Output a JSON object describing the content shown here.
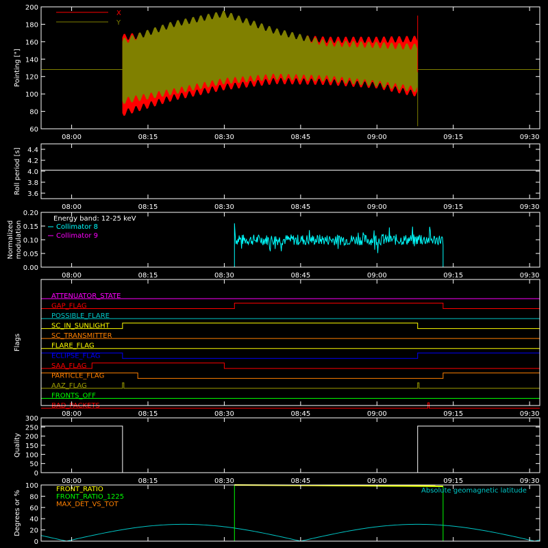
{
  "time_ticks": [
    "08:00",
    "08:15",
    "08:30",
    "08:45",
    "09:00",
    "09:15",
    "09:30"
  ],
  "chart_data": [
    {
      "type": "line",
      "ylabel": "Pointing [\"]",
      "ylim": [
        60,
        200
      ],
      "yticks": [
        60,
        80,
        100,
        120,
        140,
        160,
        180,
        200
      ],
      "xlim": [
        "07:54",
        "09:32"
      ],
      "legend": "top-left",
      "series": [
        {
          "name": "X",
          "color": "#ff0000",
          "baseline": 128,
          "active": [
            "08:10",
            "09:08"
          ],
          "upper_envelope": [
            [
              "08:10",
              165
            ],
            [
              "08:20",
              170
            ],
            [
              "08:30",
              173
            ],
            [
              "08:40",
              166
            ],
            [
              "08:50",
              162
            ],
            [
              "09:00",
              162
            ],
            [
              "09:07",
              163
            ]
          ],
          "lower_envelope": [
            [
              "08:10",
              78
            ],
            [
              "08:20",
              96
            ],
            [
              "08:30",
              108
            ],
            [
              "08:40",
              115
            ],
            [
              "08:50",
              114
            ],
            [
              "09:00",
              110
            ],
            [
              "09:07",
              101
            ]
          ]
        },
        {
          "name": "Y",
          "color": "#808000",
          "baseline": 128,
          "active": [
            "08:10",
            "09:08"
          ],
          "upper_envelope": [
            [
              "08:10",
              160
            ],
            [
              "08:20",
              180
            ],
            [
              "08:30",
              192
            ],
            [
              "08:40",
              172
            ],
            [
              "08:50",
              158
            ],
            [
              "09:00",
              156
            ],
            [
              "09:07",
              154
            ]
          ],
          "lower_envelope": [
            [
              "08:10",
              92
            ],
            [
              "08:20",
              103
            ],
            [
              "08:30",
              115
            ],
            [
              "08:40",
              120
            ],
            [
              "08:50",
              118
            ],
            [
              "09:00",
              112
            ],
            [
              "09:07",
              106
            ]
          ]
        }
      ]
    },
    {
      "type": "line",
      "ylabel": "Roll period [s]",
      "ylim": [
        3.5,
        4.5
      ],
      "yticks": [
        3.6,
        3.8,
        4.0,
        4.2,
        4.4
      ],
      "series": [
        {
          "name": "",
          "color": "#ffffff",
          "values": [
            [
              "07:54",
              4.02
            ],
            [
              "09:32",
              4.02
            ]
          ]
        }
      ]
    },
    {
      "type": "line",
      "ylabel": "Normalized modulation",
      "ylim": [
        0,
        0.2
      ],
      "yticks": [
        0.0,
        0.05,
        0.1,
        0.15,
        0.2
      ],
      "annotation": "Energy band: 12-25 keV",
      "series": [
        {
          "name": "Collimator 8",
          "color": "#00ffff",
          "active": [
            "08:32",
            "09:13"
          ],
          "mean": 0.1,
          "spread": 0.02
        },
        {
          "name": "Collimator 9",
          "color": "#ff00ff",
          "values": [
            [
              "07:54",
              0
            ],
            [
              "09:32",
              0
            ]
          ]
        }
      ]
    },
    {
      "type": "line",
      "ylabel": "Flags",
      "flags": [
        {
          "name": "ATTENUATOR_STATE",
          "color": "#ff00ff",
          "segments": []
        },
        {
          "name": "GAP_FLAG",
          "color": "#ff0000",
          "segments": [
            [
              "08:32",
              "09:13"
            ]
          ]
        },
        {
          "name": "POSSIBLE_FLARE",
          "color": "#00c8c8",
          "segments": []
        },
        {
          "name": "SC_IN_SUNLIGHT",
          "color": "#ffff00",
          "segments": [
            [
              "08:10",
              "09:08"
            ]
          ]
        },
        {
          "name": "SC_TRANSMITTER",
          "color": "#ff8000",
          "segments": []
        },
        {
          "name": "FLARE_FLAG",
          "color": "#ffff00",
          "segments": []
        },
        {
          "name": "ECLIPSE_FLAG",
          "color": "#0000ff",
          "segments": [
            [
              "07:54",
              "08:10"
            ],
            [
              "09:08",
              "09:32"
            ]
          ]
        },
        {
          "name": "SAA_FLAG",
          "color": "#ff0000",
          "segments": [
            [
              "08:04",
              "08:30"
            ]
          ]
        },
        {
          "name": "PARTICLE_FLAG",
          "color": "#ff8000",
          "segments": [
            [
              "07:54",
              "08:13"
            ],
            [
              "09:13",
              "09:32"
            ]
          ]
        },
        {
          "name": "AAZ_FLAG",
          "color": "#a0a000",
          "segments": [
            [
              "08:10",
              "08:10"
            ],
            [
              "09:08",
              "09:08"
            ]
          ]
        },
        {
          "name": "FRONTS_OFF",
          "color": "#00ff00",
          "segments": []
        },
        {
          "name": "BAD_PACKETS",
          "color": "#ff0000",
          "segments": [
            [
              "09:10",
              "09:10"
            ]
          ]
        }
      ]
    },
    {
      "type": "line",
      "ylabel": "Quality",
      "ylim": [
        0,
        300
      ],
      "yticks": [
        0,
        50,
        100,
        150,
        200,
        250,
        300
      ],
      "series": [
        {
          "name": "",
          "color": "#ffffff",
          "values": [
            [
              "07:54",
              255
            ],
            [
              "08:10",
              255
            ],
            [
              "08:10",
              0
            ],
            [
              "09:08",
              0
            ],
            [
              "09:08",
              255
            ],
            [
              "09:32",
              255
            ]
          ]
        }
      ]
    },
    {
      "type": "line",
      "ylabel": "Degrees or %",
      "ylim": [
        0,
        100
      ],
      "yticks": [
        0,
        20,
        40,
        60,
        80,
        100
      ],
      "annotation": "Absolute geomagnetic latitude",
      "series": [
        {
          "name": "FRONT_RATIO",
          "color": "#ffff00",
          "values": [
            [
              "08:32",
              100
            ],
            [
              "09:13",
              98
            ]
          ]
        },
        {
          "name": "FRONT_RATIO_1225",
          "color": "#00ff00",
          "values": [
            [
              "07:54",
              0
            ],
            [
              "08:32",
              0
            ],
            [
              "08:32",
              100
            ],
            [
              "09:13",
              97
            ],
            [
              "09:13",
              0
            ],
            [
              "09:32",
              0
            ]
          ]
        },
        {
          "name": "MAX_DET_VS_TOT",
          "color": "#ff8000",
          "values": [
            [
              "07:54",
              0
            ],
            [
              "09:32",
              0
            ]
          ]
        },
        {
          "name": "Absolute geomagnetic latitude",
          "color": "#00c8c8",
          "amplitude": 30,
          "zero_crossings": [
            "07:59",
            "08:45",
            "09:31"
          ]
        }
      ]
    }
  ]
}
